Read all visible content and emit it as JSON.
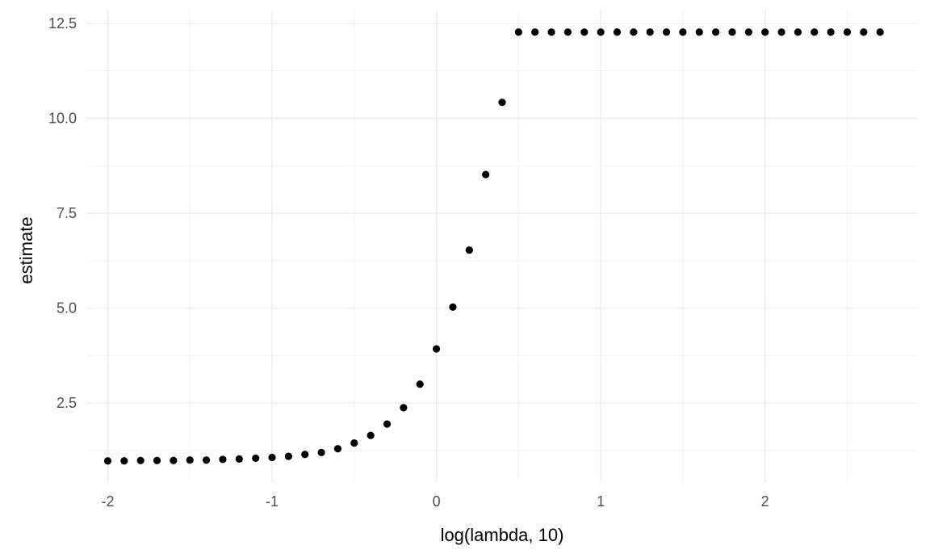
{
  "chart_data": {
    "type": "scatter",
    "xlabel": "log(lambda, 10)",
    "ylabel": "estimate",
    "xlim": [
      -2.13,
      2.93
    ],
    "ylim": [
      0.4,
      12.86
    ],
    "x_ticks": [
      -2,
      -1,
      0,
      1,
      2
    ],
    "x_tick_labels": [
      "-2",
      "-1",
      "0",
      "1",
      "2"
    ],
    "y_ticks": [
      2.5,
      5.0,
      7.5,
      10.0,
      12.5
    ],
    "y_tick_labels": [
      "2.5",
      "5.0",
      "7.5",
      "10.0",
      "12.5"
    ],
    "grid": true,
    "point_color": "#000000",
    "points": [
      {
        "x": -2.0,
        "y": 0.98
      },
      {
        "x": -1.9,
        "y": 0.98
      },
      {
        "x": -1.8,
        "y": 0.99
      },
      {
        "x": -1.7,
        "y": 0.99
      },
      {
        "x": -1.6,
        "y": 0.99
      },
      {
        "x": -1.5,
        "y": 1.0
      },
      {
        "x": -1.4,
        "y": 1.0
      },
      {
        "x": -1.3,
        "y": 1.02
      },
      {
        "x": -1.2,
        "y": 1.03
      },
      {
        "x": -1.1,
        "y": 1.05
      },
      {
        "x": -1.0,
        "y": 1.07
      },
      {
        "x": -0.9,
        "y": 1.1
      },
      {
        "x": -0.8,
        "y": 1.15
      },
      {
        "x": -0.7,
        "y": 1.2
      },
      {
        "x": -0.6,
        "y": 1.3
      },
      {
        "x": -0.5,
        "y": 1.45
      },
      {
        "x": -0.4,
        "y": 1.65
      },
      {
        "x": -0.3,
        "y": 1.95
      },
      {
        "x": -0.2,
        "y": 2.38
      },
      {
        "x": -0.1,
        "y": 3.0
      },
      {
        "x": 0.0,
        "y": 3.93
      },
      {
        "x": 0.1,
        "y": 5.03
      },
      {
        "x": 0.2,
        "y": 6.53
      },
      {
        "x": 0.3,
        "y": 8.52
      },
      {
        "x": 0.4,
        "y": 10.42
      },
      {
        "x": 0.5,
        "y": 12.27
      },
      {
        "x": 0.6,
        "y": 12.27
      },
      {
        "x": 0.7,
        "y": 12.27
      },
      {
        "x": 0.8,
        "y": 12.27
      },
      {
        "x": 0.9,
        "y": 12.27
      },
      {
        "x": 1.0,
        "y": 12.27
      },
      {
        "x": 1.1,
        "y": 12.27
      },
      {
        "x": 1.2,
        "y": 12.27
      },
      {
        "x": 1.3,
        "y": 12.27
      },
      {
        "x": 1.4,
        "y": 12.27
      },
      {
        "x": 1.5,
        "y": 12.27
      },
      {
        "x": 1.6,
        "y": 12.27
      },
      {
        "x": 1.7,
        "y": 12.27
      },
      {
        "x": 1.8,
        "y": 12.27
      },
      {
        "x": 1.9,
        "y": 12.27
      },
      {
        "x": 2.0,
        "y": 12.27
      },
      {
        "x": 2.1,
        "y": 12.27
      },
      {
        "x": 2.2,
        "y": 12.27
      },
      {
        "x": 2.3,
        "y": 12.27
      },
      {
        "x": 2.4,
        "y": 12.27
      },
      {
        "x": 2.5,
        "y": 12.27
      },
      {
        "x": 2.6,
        "y": 12.27
      },
      {
        "x": 2.7,
        "y": 12.27
      }
    ]
  }
}
